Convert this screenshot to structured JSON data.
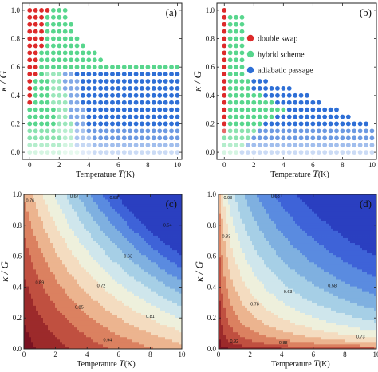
{
  "chart_data": [
    {
      "panel_label": "(a)",
      "type": "scatter",
      "subtype": "dot-grid phase diagram",
      "xlabel_text": "Temperature ",
      "xlabel_var": "T",
      "xlabel_unit": "(K)",
      "ylabel_text": "κ / G",
      "xlim": [
        -0.5,
        10.3
      ],
      "ylim": [
        -0.05,
        1.05
      ],
      "xticks": [
        0,
        2,
        4,
        6,
        8,
        10
      ],
      "yticks": [
        0.0,
        0.2,
        0.4,
        0.6,
        0.8,
        1.0
      ],
      "grid_dx": 0.4,
      "grid_dy": 0.05,
      "rule": {
        "red_max_T_by_kappa": [
          [
            0.35,
            0.0
          ],
          [
            0.55,
            0.4
          ],
          [
            0.75,
            0.8
          ],
          [
            1.0,
            1.2
          ]
        ],
        "green_max_T_by_kappa": [
          [
            0.6,
            5.6
          ],
          [
            0.7,
            4.4
          ],
          [
            0.85,
            3.0
          ],
          [
            1.0,
            2.4
          ]
        ],
        "blue_max_T_by_kappa": [
          [
            0.55,
            10.0
          ],
          [
            0.6,
            7.6
          ]
        ]
      },
      "colors": {
        "double_swap": "#dd2a2a",
        "hybrid": "#58d68d",
        "adiabatic": "#2e6fd6"
      }
    },
    {
      "panel_label": "(b)",
      "type": "scatter",
      "subtype": "dot-grid phase diagram",
      "xlabel_text": "Temperature ",
      "xlabel_var": "T",
      "xlabel_unit": "(K)",
      "ylabel_text": "κ / G",
      "xlim": [
        -0.5,
        10.3
      ],
      "ylim": [
        -0.05,
        1.05
      ],
      "xticks": [
        0,
        2,
        4,
        6,
        8,
        10
      ],
      "yticks": [
        0.0,
        0.2,
        0.4,
        0.6,
        0.8,
        1.0
      ],
      "legend": {
        "placement": "top-right",
        "entries": [
          {
            "label": "double swap",
            "color": "#dd2a2a"
          },
          {
            "label": "hybrid scheme",
            "color": "#58d68d"
          },
          {
            "label": "adiabatic passage",
            "color": "#2e6fd6"
          }
        ]
      }
    },
    {
      "panel_label": "(c)",
      "type": "contour",
      "xlabel_text": "Temperature ",
      "xlabel_var": "T",
      "xlabel_unit": "(K)",
      "ylabel_text": "κ / G",
      "xlim": [
        0,
        10
      ],
      "ylim": [
        0,
        1.0
      ],
      "xticks": [
        0,
        2,
        4,
        6,
        8,
        10
      ],
      "yticks": [
        0.0,
        0.2,
        0.4,
        0.6,
        0.8,
        1.0
      ],
      "contour_labels": [
        {
          "text": "0.76",
          "x": 0.4,
          "y": 0.95
        },
        {
          "text": "0.67",
          "x": 3.2,
          "y": 0.98
        },
        {
          "text": "0.58",
          "x": 5.7,
          "y": 0.97
        },
        {
          "text": "0.54",
          "x": 9.1,
          "y": 0.79
        },
        {
          "text": "0.63",
          "x": 6.6,
          "y": 0.59
        },
        {
          "text": "0.72",
          "x": 4.9,
          "y": 0.4
        },
        {
          "text": "0.81",
          "x": 8.0,
          "y": 0.2
        },
        {
          "text": "0.85",
          "x": 3.5,
          "y": 0.26
        },
        {
          "text": "0.89",
          "x": 1.0,
          "y": 0.42
        },
        {
          "text": "0.94",
          "x": 5.3,
          "y": 0.05
        }
      ]
    },
    {
      "panel_label": "(d)",
      "type": "contour",
      "xlabel_text": "Temperature ",
      "xlabel_var": "T",
      "xlabel_unit": "(K)",
      "ylabel_text": "κ / G",
      "xlim": [
        0,
        10
      ],
      "ylim": [
        0,
        1.0
      ],
      "xticks": [
        0,
        2,
        4,
        6,
        8,
        10
      ],
      "yticks": [
        0.0,
        0.2,
        0.4,
        0.6,
        0.8,
        1.0
      ],
      "contour_labels": [
        {
          "text": "0.93",
          "x": 0.6,
          "y": 0.97
        },
        {
          "text": "0.68",
          "x": 3.6,
          "y": 0.98
        },
        {
          "text": "0.83",
          "x": 0.5,
          "y": 0.72
        },
        {
          "text": "0.78",
          "x": 2.3,
          "y": 0.28
        },
        {
          "text": "0.63",
          "x": 4.4,
          "y": 0.36
        },
        {
          "text": "0.58",
          "x": 7.2,
          "y": 0.4
        },
        {
          "text": "0.73",
          "x": 9.0,
          "y": 0.07
        },
        {
          "text": "0.88",
          "x": 4.1,
          "y": 0.03
        },
        {
          "text": "0.92",
          "x": 1.0,
          "y": 0.04
        }
      ]
    }
  ]
}
